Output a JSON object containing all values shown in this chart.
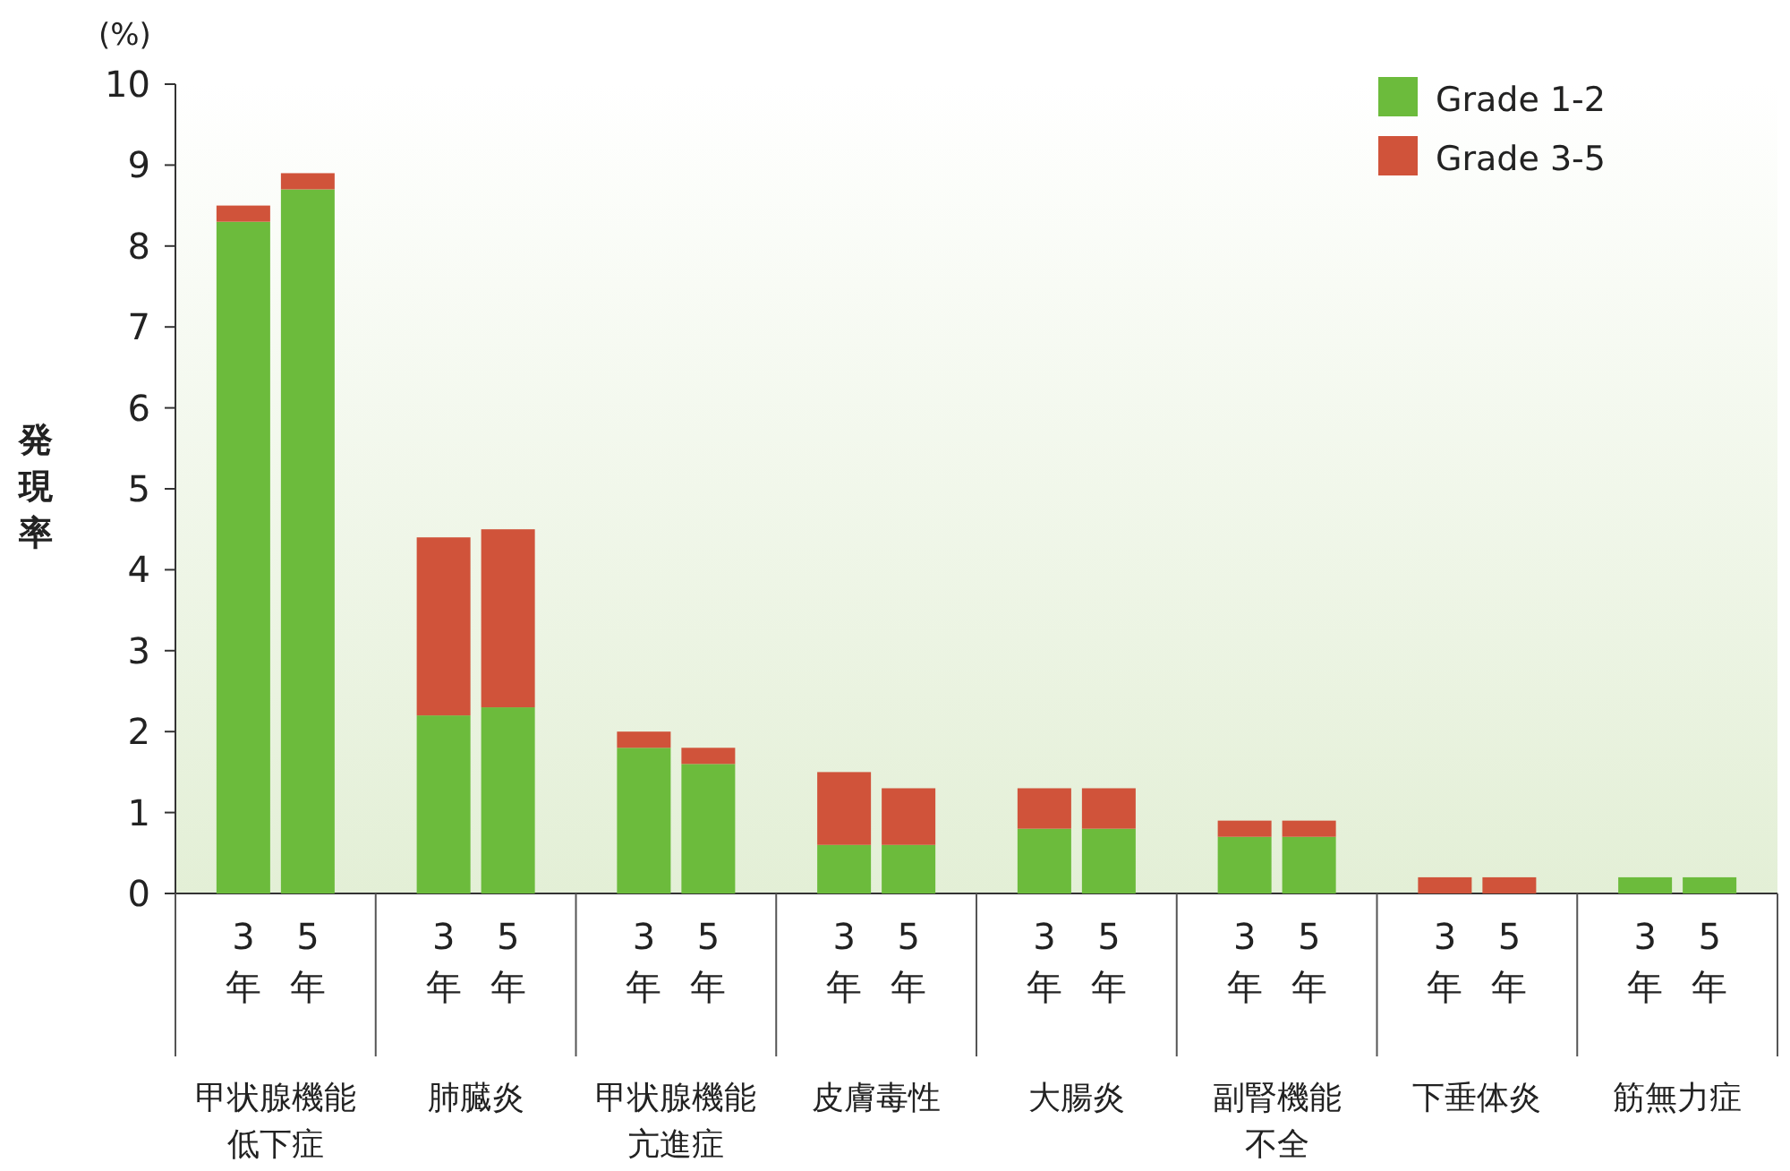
{
  "chart_data": {
    "type": "bar",
    "stacked": true,
    "ylabel": "発現率",
    "title": "(%)",
    "categories": [
      "3年",
      "5年",
      "3年",
      "5年",
      "3年",
      "5年",
      "3年",
      "5年",
      "3年",
      "5年",
      "3年",
      "5年",
      "3年",
      "5年",
      "3年",
      "5年"
    ],
    "annotations": [
      "甲状腺機能低下症",
      "肺臓炎",
      "甲状腺機能亢進症",
      "皮膚毒性",
      "大腸炎",
      "副腎機能不全",
      "下垂体炎",
      "筋無力症"
    ],
    "series": [
      {
        "name": "Grade 1-2",
        "color": "#6cbb3c",
        "values": [
          8.3,
          8.7,
          2.2,
          2.3,
          1.8,
          1.6,
          0.6,
          0.6,
          0.8,
          0.8,
          0.7,
          0.7,
          0,
          0,
          0.2,
          0.2
        ]
      },
      {
        "name": "Grade 3-5",
        "color": "#d0533a",
        "values": [
          0.2,
          0.2,
          2.2,
          2.2,
          0.2,
          0.2,
          0.9,
          0.7,
          0.5,
          0.5,
          0.2,
          0.2,
          0.2,
          0.2,
          0,
          0
        ]
      }
    ],
    "ylim": [
      0,
      10
    ],
    "yticks": [
      0,
      1,
      2,
      3,
      4,
      5,
      6,
      7,
      8,
      9,
      10
    ],
    "legend": "top right",
    "grid": false
  }
}
